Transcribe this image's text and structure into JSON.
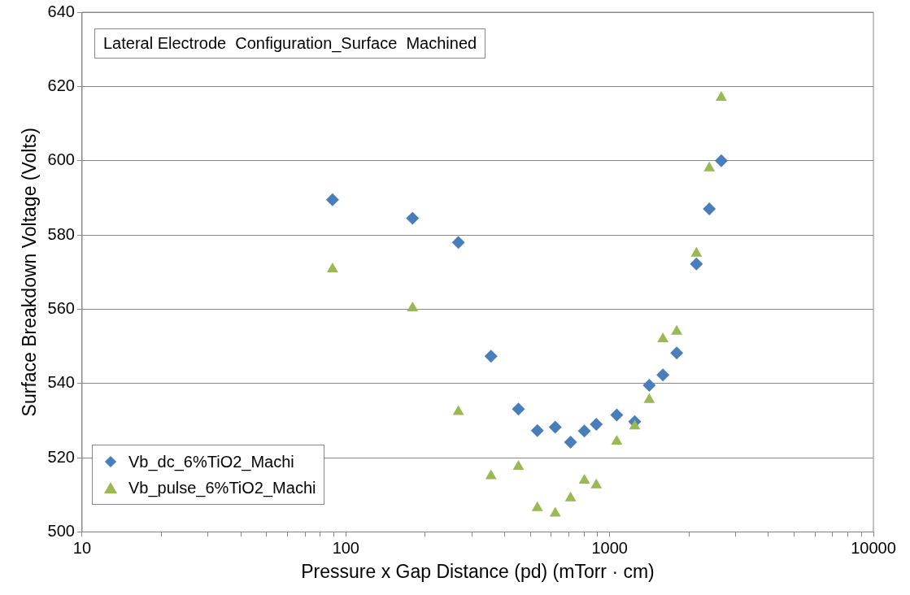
{
  "chart_data": {
    "type": "scatter",
    "xlabel": "Pressure x Gap Distance (pd) (mTorr · cm)",
    "ylabel": "Surface Breakdown Voltage (Volts)",
    "annotations": [
      "Lateral Electrode  Configuration_Surface  Machined"
    ],
    "x": [
      89,
      179,
      267,
      355,
      451,
      532,
      622,
      711,
      802,
      890,
      1064,
      1245,
      1413,
      1592,
      1796,
      2133,
      2387,
      2650
    ],
    "series": [
      {
        "name": "Vb_dc_6%TiO2_Machi",
        "color": "#4a7ebb",
        "marker": "diamond",
        "values": [
          589.5,
          584.5,
          578,
          547.3,
          533.1,
          527.3,
          528.2,
          524.2,
          527.2,
          529,
          531.5,
          529.7,
          539.5,
          542.3,
          548.2,
          572.2,
          587,
          600
        ]
      },
      {
        "name": "Vb_pulse_6%TiO2_Machi",
        "color": "#98b954",
        "marker": "triangle",
        "values": [
          570.8,
          560.3,
          532.4,
          515.1,
          517.6,
          506.5,
          505,
          509.1,
          513.9,
          512.6,
          524.4,
          528.5,
          535.6,
          552,
          554,
          575,
          598,
          617
        ]
      }
    ],
    "log": "x",
    "xlim": [
      10,
      10000
    ],
    "xticks": [
      10,
      {
        "value": 20,
        "label": null
      },
      {
        "value": 30,
        "label": null
      },
      {
        "value": 40,
        "label": null
      },
      {
        "value": 50,
        "label": null
      },
      {
        "value": 60,
        "label": null
      },
      {
        "value": 70,
        "label": null
      },
      {
        "value": 80,
        "label": null
      },
      {
        "value": 90,
        "label": null
      },
      100,
      {
        "value": 200,
        "label": null
      },
      {
        "value": 300,
        "label": null
      },
      {
        "value": 400,
        "label": null
      },
      {
        "value": 500,
        "label": null
      },
      {
        "value": 600,
        "label": null
      },
      {
        "value": 700,
        "label": null
      },
      {
        "value": 800,
        "label": null
      },
      {
        "value": 900,
        "label": null
      },
      1000,
      {
        "value": 2000,
        "label": null
      },
      {
        "value": 3000,
        "label": null
      },
      {
        "value": 4000,
        "label": null
      },
      {
        "value": 5000,
        "label": null
      },
      {
        "value": 6000,
        "label": null
      },
      {
        "value": 7000,
        "label": null
      },
      {
        "value": 8000,
        "label": null
      },
      {
        "value": 9000,
        "label": null
      },
      10000
    ],
    "ylim": [
      500,
      640
    ],
    "yticks": [
      500,
      520,
      540,
      560,
      580,
      600,
      620,
      640
    ],
    "grid": "y",
    "legend": "bottom left"
  }
}
